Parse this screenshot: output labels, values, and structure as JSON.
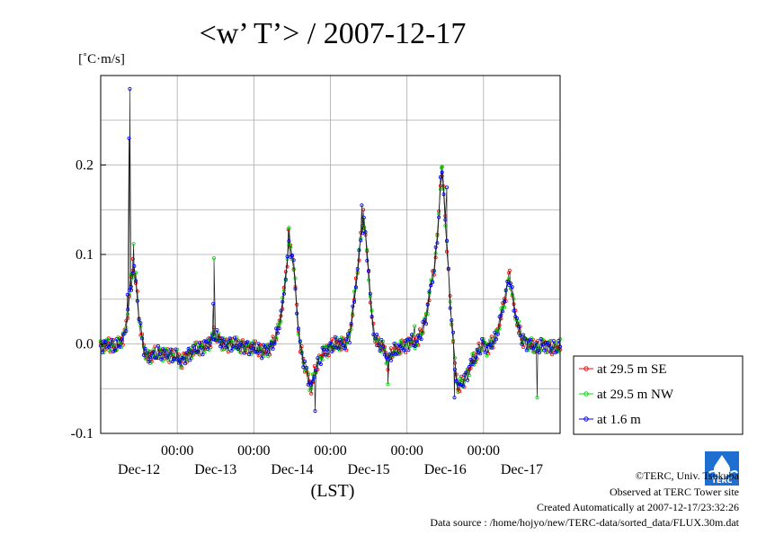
{
  "chart_data": {
    "type": "line",
    "title": "<w’ T’> / 2007-12-17",
    "ylabel": "[˚C·m/s]",
    "xlabel": "(LST)",
    "ylim": [
      -0.1,
      0.3
    ],
    "xlim_days": [
      0,
      6
    ],
    "yticks": [
      {
        "value": 0.2,
        "label": "0.2"
      },
      {
        "value": 0.1,
        "label": "0.1"
      },
      {
        "value": 0.0,
        "label": "0.0"
      },
      {
        "value": -0.1,
        "label": "-0.1"
      }
    ],
    "xticks_time": [
      {
        "day": 1.0,
        "label": "00:00"
      },
      {
        "day": 2.0,
        "label": "00:00"
      },
      {
        "day": 3.0,
        "label": "00:00"
      },
      {
        "day": 4.0,
        "label": "00:00"
      },
      {
        "day": 5.0,
        "label": "00:00"
      }
    ],
    "xticks_date": [
      {
        "day": 0.5,
        "label": "Dec-12"
      },
      {
        "day": 1.5,
        "label": "Dec-13"
      },
      {
        "day": 2.5,
        "label": "Dec-14"
      },
      {
        "day": 3.5,
        "label": "Dec-15"
      },
      {
        "day": 4.5,
        "label": "Dec-16"
      },
      {
        "day": 5.5,
        "label": "Dec-17"
      }
    ],
    "grid": true,
    "legend_position": "right-bottom",
    "base": [
      [
        0.0,
        -0.002
      ],
      [
        0.1,
        0.0
      ],
      [
        0.2,
        -0.004
      ],
      [
        0.28,
        0.005
      ],
      [
        0.32,
        0.012
      ],
      [
        0.36,
        0.04
      ],
      [
        0.4,
        0.075
      ],
      [
        0.43,
        0.085
      ],
      [
        0.46,
        0.07
      ],
      [
        0.5,
        0.03
      ],
      [
        0.55,
        0.0
      ],
      [
        0.6,
        -0.015
      ],
      [
        0.7,
        -0.012
      ],
      [
        0.8,
        -0.01
      ],
      [
        0.9,
        -0.012
      ],
      [
        1.0,
        -0.015
      ],
      [
        1.05,
        -0.02
      ],
      [
        1.1,
        -0.015
      ],
      [
        1.2,
        -0.008
      ],
      [
        1.3,
        -0.005
      ],
      [
        1.4,
        0.0
      ],
      [
        1.45,
        0.005
      ],
      [
        1.48,
        0.01
      ],
      [
        1.5,
        0.008
      ],
      [
        1.55,
        0.005
      ],
      [
        1.6,
        0.0
      ],
      [
        1.7,
        0.0
      ],
      [
        1.8,
        -0.002
      ],
      [
        1.9,
        -0.003
      ],
      [
        2.0,
        -0.005
      ],
      [
        2.1,
        -0.008
      ],
      [
        2.2,
        -0.005
      ],
      [
        2.25,
        0.0
      ],
      [
        2.3,
        0.01
      ],
      [
        2.35,
        0.03
      ],
      [
        2.4,
        0.06
      ],
      [
        2.43,
        0.09
      ],
      [
        2.46,
        0.11
      ],
      [
        2.5,
        0.1
      ],
      [
        2.53,
        0.08
      ],
      [
        2.56,
        0.04
      ],
      [
        2.6,
        0.0
      ],
      [
        2.65,
        -0.02
      ],
      [
        2.7,
        -0.035
      ],
      [
        2.75,
        -0.05
      ],
      [
        2.8,
        -0.03
      ],
      [
        2.85,
        -0.02
      ],
      [
        2.9,
        -0.01
      ],
      [
        3.0,
        -0.003
      ],
      [
        3.1,
        0.0
      ],
      [
        3.2,
        0.0
      ],
      [
        3.25,
        0.01
      ],
      [
        3.3,
        0.04
      ],
      [
        3.35,
        0.08
      ],
      [
        3.4,
        0.12
      ],
      [
        3.43,
        0.14
      ],
      [
        3.46,
        0.12
      ],
      [
        3.5,
        0.08
      ],
      [
        3.53,
        0.04
      ],
      [
        3.56,
        0.015
      ],
      [
        3.6,
        0.003
      ],
      [
        3.7,
        -0.005
      ],
      [
        3.75,
        -0.02
      ],
      [
        3.8,
        -0.01
      ],
      [
        3.9,
        -0.005
      ],
      [
        4.0,
        0.0
      ],
      [
        4.05,
        0.005
      ],
      [
        4.1,
        0.0
      ],
      [
        4.15,
        0.005
      ],
      [
        4.2,
        0.015
      ],
      [
        4.25,
        0.03
      ],
      [
        4.3,
        0.06
      ],
      [
        4.35,
        0.08
      ],
      [
        4.4,
        0.12
      ],
      [
        4.43,
        0.17
      ],
      [
        4.45,
        0.195
      ],
      [
        4.47,
        0.185
      ],
      [
        4.5,
        0.14
      ],
      [
        4.53,
        0.1
      ],
      [
        4.56,
        0.05
      ],
      [
        4.6,
        0.01
      ],
      [
        4.63,
        -0.03
      ],
      [
        4.67,
        -0.05
      ],
      [
        4.7,
        -0.045
      ],
      [
        4.75,
        -0.04
      ],
      [
        4.8,
        -0.03
      ],
      [
        4.85,
        -0.02
      ],
      [
        4.9,
        -0.015
      ],
      [
        4.95,
        -0.005
      ],
      [
        5.0,
        0.0
      ],
      [
        5.05,
        -0.005
      ],
      [
        5.1,
        0.0
      ],
      [
        5.15,
        0.005
      ],
      [
        5.2,
        0.02
      ],
      [
        5.25,
        0.04
      ],
      [
        5.3,
        0.06
      ],
      [
        5.33,
        0.075
      ],
      [
        5.36,
        0.065
      ],
      [
        5.4,
        0.04
      ],
      [
        5.45,
        0.02
      ],
      [
        5.5,
        0.005
      ],
      [
        5.6,
        0.0
      ],
      [
        5.7,
        -0.005
      ],
      [
        5.8,
        0.0
      ],
      [
        5.9,
        -0.005
      ],
      [
        6.0,
        -0.003
      ]
    ],
    "series": [
      {
        "name": "at 29.5 m SE",
        "color": "#ff0000",
        "jitter": 0.006,
        "phase": 0.3,
        "extra": [
          [
            0.42,
            0.095
          ],
          [
            4.46,
            0.198
          ],
          [
            3.43,
            0.15
          ],
          [
            2.45,
            0.128
          ],
          [
            5.34,
            0.082
          ]
        ]
      },
      {
        "name": "at 29.5 m NW",
        "color": "#00dd00",
        "jitter": 0.006,
        "phase": 1.7,
        "extra": [
          [
            0.43,
            0.112
          ],
          [
            1.48,
            0.096
          ],
          [
            4.45,
            0.197
          ],
          [
            3.42,
            0.14
          ],
          [
            2.46,
            0.13
          ],
          [
            5.7,
            -0.06
          ],
          [
            3.75,
            -0.045
          ],
          [
            4.1,
            0.02
          ]
        ]
      },
      {
        "name": "at 1.6 m",
        "color": "#0000ff",
        "jitter": 0.006,
        "phase": 3.1,
        "extra": [
          [
            0.35,
            0.055
          ],
          [
            0.37,
            0.23
          ],
          [
            0.38,
            0.285
          ],
          [
            0.4,
            0.06
          ],
          [
            1.47,
            0.045
          ],
          [
            4.52,
            0.175
          ],
          [
            2.8,
            -0.075
          ],
          [
            4.62,
            -0.06
          ],
          [
            3.41,
            0.155
          ]
        ]
      }
    ]
  },
  "legend": {
    "items": [
      {
        "label": "at 29.5 m SE",
        "color": "#ff0000"
      },
      {
        "label": "at 29.5 m NW",
        "color": "#00dd00"
      },
      {
        "label": "at 1.6 m",
        "color": "#0000ff"
      }
    ]
  },
  "footer": {
    "copyright": "©TERC, Univ. Tsukuba",
    "observed": "Observed at TERC Tower site",
    "created": "Created Automatically at 2007-12-17/23:32:26",
    "source": "Data source : /home/hojyo/new/TERC-data/sorted_data/FLUX.30m.dat"
  },
  "logo": {
    "text": "TERC"
  }
}
